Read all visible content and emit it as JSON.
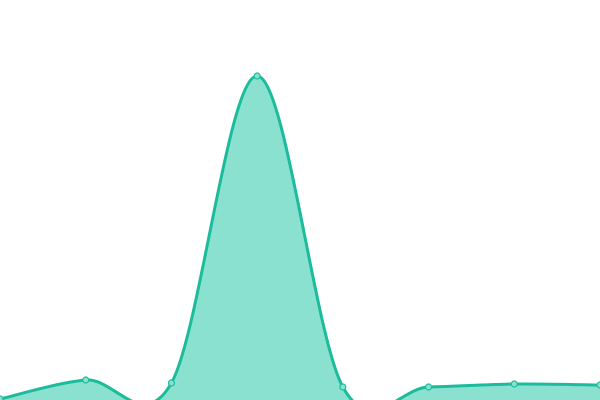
{
  "chart_data": {
    "type": "area",
    "title": "",
    "xlabel": "",
    "ylabel": "",
    "x": [
      0,
      1,
      2,
      3,
      4,
      5,
      6,
      7
    ],
    "values": [
      1,
      20,
      17,
      324,
      13,
      13,
      16,
      15
    ],
    "ylim": [
      0,
      400
    ],
    "grid": false,
    "axes_visible": false,
    "smooth": true,
    "colors": {
      "line": "#1abc9c",
      "fill": "#8be1d0",
      "marker_fill": "#8be1d0",
      "marker_stroke": "#1abc9c"
    }
  }
}
